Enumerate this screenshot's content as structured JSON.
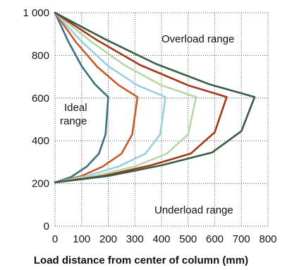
{
  "chart_data": {
    "type": "line",
    "xlabel": "Load distance from center of column (mm)",
    "ylabel": "",
    "xlim": [
      0,
      800
    ],
    "ylim": [
      0,
      1000
    ],
    "x_ticks": [
      "0",
      "100",
      "200",
      "300",
      "400",
      "500",
      "600",
      "700",
      "800"
    ],
    "y_ticks": [
      "0",
      "200",
      "400",
      "600",
      "800",
      "1 000"
    ],
    "grid": true,
    "annotations": {
      "overload": "Overload range",
      "ideal_line1": "Ideal",
      "ideal_line2": "range",
      "underload": "Underload range"
    },
    "series": [
      {
        "color": "#3d7080",
        "upper": [
          [
            0,
            1000
          ],
          [
            50,
            865
          ],
          [
            100,
            750
          ],
          [
            150,
            665
          ],
          [
            200,
            605
          ]
        ],
        "lower": [
          [
            0,
            205
          ],
          [
            60,
            230
          ],
          [
            120,
            280
          ],
          [
            165,
            340
          ],
          [
            190,
            430
          ],
          [
            200,
            605
          ]
        ]
      },
      {
        "color": "#c85a2a",
        "upper": [
          [
            0,
            1000
          ],
          [
            80,
            860
          ],
          [
            160,
            745
          ],
          [
            240,
            660
          ],
          [
            310,
            605
          ]
        ],
        "lower": [
          [
            0,
            205
          ],
          [
            100,
            235
          ],
          [
            180,
            280
          ],
          [
            250,
            340
          ],
          [
            290,
            430
          ],
          [
            310,
            605
          ]
        ]
      },
      {
        "color": "#9ccde3",
        "upper": [
          [
            0,
            1000
          ],
          [
            100,
            865
          ],
          [
            200,
            750
          ],
          [
            310,
            660
          ],
          [
            415,
            605
          ]
        ],
        "lower": [
          [
            0,
            205
          ],
          [
            120,
            235
          ],
          [
            240,
            280
          ],
          [
            340,
            340
          ],
          [
            395,
            430
          ],
          [
            415,
            605
          ]
        ]
      },
      {
        "color": "#b6d7a8",
        "upper": [
          [
            0,
            1000
          ],
          [
            130,
            870
          ],
          [
            260,
            755
          ],
          [
            400,
            660
          ],
          [
            530,
            605
          ]
        ],
        "lower": [
          [
            0,
            205
          ],
          [
            150,
            235
          ],
          [
            300,
            280
          ],
          [
            420,
            340
          ],
          [
            500,
            430
          ],
          [
            530,
            605
          ]
        ]
      },
      {
        "color": "#a03a18",
        "upper": [
          [
            0,
            1000
          ],
          [
            160,
            870
          ],
          [
            320,
            755
          ],
          [
            500,
            660
          ],
          [
            645,
            605
          ]
        ],
        "lower": [
          [
            0,
            205
          ],
          [
            180,
            235
          ],
          [
            360,
            285
          ],
          [
            510,
            340
          ],
          [
            600,
            440
          ],
          [
            645,
            605
          ]
        ]
      },
      {
        "color": "#385c44",
        "upper": [
          [
            0,
            1000
          ],
          [
            190,
            875
          ],
          [
            380,
            760
          ],
          [
            580,
            665
          ],
          [
            750,
            605
          ]
        ],
        "lower": [
          [
            0,
            205
          ],
          [
            200,
            235
          ],
          [
            400,
            285
          ],
          [
            590,
            345
          ],
          [
            700,
            445
          ],
          [
            750,
            605
          ]
        ]
      }
    ]
  }
}
